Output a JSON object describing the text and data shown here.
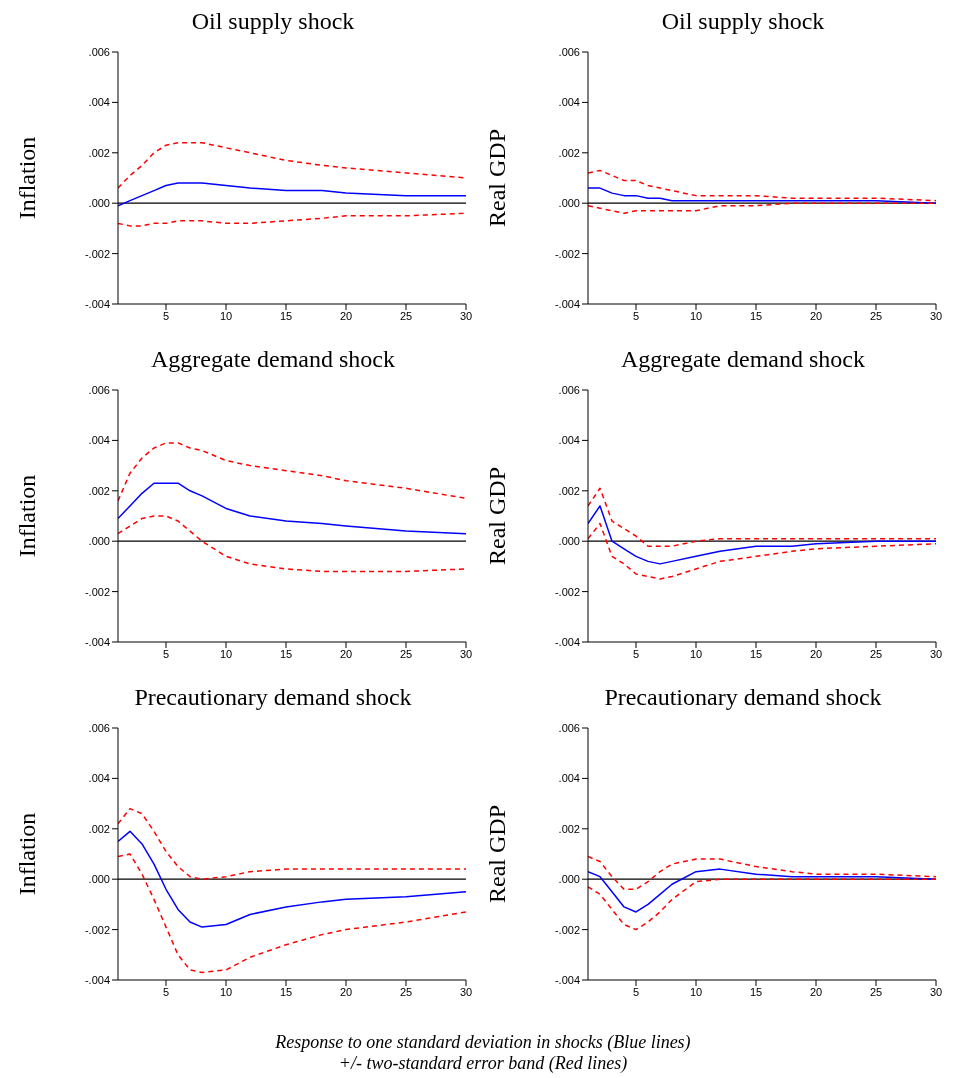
{
  "chart_data": [
    {
      "type": "line",
      "title": "Oil supply shock",
      "ylabel": "Inflation",
      "x": [
        1,
        2,
        3,
        4,
        5,
        6,
        7,
        8,
        10,
        12,
        15,
        18,
        20,
        25,
        30
      ],
      "xlim": [
        1,
        30
      ],
      "xticks": [
        5,
        10,
        15,
        20,
        25,
        30
      ],
      "ylim": [
        -0.004,
        0.006
      ],
      "yticks": [
        {
          "value": -0.004,
          "label": "-.004"
        },
        {
          "value": -0.002,
          "label": "-.002"
        },
        {
          "value": 0,
          "label": ".000"
        },
        {
          "value": 0.002,
          "label": ".002"
        },
        {
          "value": 0.004,
          "label": ".004"
        },
        {
          "value": 0.006,
          "label": ".006"
        }
      ],
      "ref_lines": [
        {
          "axis": "y",
          "value": 0,
          "color": "#000000"
        }
      ],
      "series": [
        {
          "color": "#0000ff",
          "line_style": "solid",
          "values": [
            -0.0001,
            0.0001,
            0.0003,
            0.0005,
            0.0007,
            0.0008,
            0.0008,
            0.0008,
            0.0007,
            0.0006,
            0.0005,
            0.0005,
            0.0004,
            0.0003,
            0.0003
          ]
        },
        {
          "color": "#ff0000",
          "line_style": "dashed",
          "values": [
            0.0006,
            0.0011,
            0.0015,
            0.002,
            0.0023,
            0.0024,
            0.0024,
            0.0024,
            0.0022,
            0.002,
            0.0017,
            0.0015,
            0.0014,
            0.0012,
            0.001
          ]
        },
        {
          "color": "#ff0000",
          "line_style": "dashed",
          "values": [
            -0.0008,
            -0.0009,
            -0.0009,
            -0.0008,
            -0.0008,
            -0.0007,
            -0.0007,
            -0.0007,
            -0.0008,
            -0.0008,
            -0.0007,
            -0.0006,
            -0.0005,
            -0.0005,
            -0.0004
          ]
        }
      ]
    },
    {
      "type": "line",
      "title": "Oil supply shock",
      "ylabel": "Real GDP",
      "x": [
        1,
        2,
        3,
        4,
        5,
        6,
        7,
        8,
        10,
        12,
        15,
        18,
        20,
        25,
        30
      ],
      "xlim": [
        1,
        30
      ],
      "xticks": [
        5,
        10,
        15,
        20,
        25,
        30
      ],
      "ylim": [
        -0.004,
        0.006
      ],
      "yticks": [
        {
          "value": -0.004,
          "label": "-.004"
        },
        {
          "value": -0.002,
          "label": "-.002"
        },
        {
          "value": 0,
          "label": ".000"
        },
        {
          "value": 0.002,
          "label": ".002"
        },
        {
          "value": 0.004,
          "label": ".004"
        },
        {
          "value": 0.006,
          "label": ".006"
        }
      ],
      "ref_lines": [
        {
          "axis": "y",
          "value": 0,
          "color": "#000000"
        }
      ],
      "series": [
        {
          "color": "#0000ff",
          "line_style": "solid",
          "values": [
            0.0006,
            0.0006,
            0.0004,
            0.0003,
            0.0003,
            0.0002,
            0.0002,
            0.0001,
            0.0001,
            0.0001,
            0.0001,
            0.0001,
            0.0001,
            0.0001,
            0
          ]
        },
        {
          "color": "#ff0000",
          "line_style": "dashed",
          "values": [
            0.0012,
            0.0013,
            0.0011,
            0.0009,
            0.0009,
            0.0007,
            0.0006,
            0.0005,
            0.0003,
            0.0003,
            0.0003,
            0.0002,
            0.0002,
            0.0002,
            0.0001
          ]
        },
        {
          "color": "#ff0000",
          "line_style": "dashed",
          "values": [
            -0.0001,
            -0.0002,
            -0.0003,
            -0.0004,
            -0.0003,
            -0.0003,
            -0.0003,
            -0.0003,
            -0.0003,
            -0.0001,
            -0.0001,
            0,
            0,
            0,
            0
          ]
        }
      ]
    },
    {
      "type": "line",
      "title": "Aggregate demand shock",
      "ylabel": "Inflation",
      "x": [
        1,
        2,
        3,
        4,
        5,
        6,
        7,
        8,
        10,
        12,
        15,
        18,
        20,
        25,
        30
      ],
      "xlim": [
        1,
        30
      ],
      "xticks": [
        5,
        10,
        15,
        20,
        25,
        30
      ],
      "ylim": [
        -0.004,
        0.006
      ],
      "yticks": [
        {
          "value": -0.004,
          "label": "-.004"
        },
        {
          "value": -0.002,
          "label": "-.002"
        },
        {
          "value": 0,
          "label": ".000"
        },
        {
          "value": 0.002,
          "label": ".002"
        },
        {
          "value": 0.004,
          "label": ".004"
        },
        {
          "value": 0.006,
          "label": ".006"
        }
      ],
      "ref_lines": [
        {
          "axis": "y",
          "value": 0,
          "color": "#000000"
        }
      ],
      "series": [
        {
          "color": "#0000ff",
          "line_style": "solid",
          "values": [
            0.0009,
            0.0014,
            0.0019,
            0.0023,
            0.0023,
            0.0023,
            0.002,
            0.0018,
            0.0013,
            0.001,
            0.0008,
            0.0007,
            0.0006,
            0.0004,
            0.0003
          ]
        },
        {
          "color": "#ff0000",
          "line_style": "dashed",
          "values": [
            0.0016,
            0.0027,
            0.0033,
            0.0037,
            0.0039,
            0.0039,
            0.0037,
            0.0036,
            0.0032,
            0.003,
            0.0028,
            0.0026,
            0.0024,
            0.0021,
            0.0017
          ]
        },
        {
          "color": "#ff0000",
          "line_style": "dashed",
          "values": [
            0.0003,
            0.0006,
            0.0009,
            0.001,
            0.001,
            0.0008,
            0.0004,
            0,
            -0.0006,
            -0.0009,
            -0.0011,
            -0.0012,
            -0.0012,
            -0.0012,
            -0.0011
          ]
        }
      ]
    },
    {
      "type": "line",
      "title": "Aggregate demand shock",
      "ylabel": "Real GDP",
      "x": [
        1,
        2,
        3,
        4,
        5,
        6,
        7,
        8,
        10,
        12,
        15,
        18,
        20,
        25,
        30
      ],
      "xlim": [
        1,
        30
      ],
      "xticks": [
        5,
        10,
        15,
        20,
        25,
        30
      ],
      "ylim": [
        -0.004,
        0.006
      ],
      "yticks": [
        {
          "value": -0.004,
          "label": "-.004"
        },
        {
          "value": -0.002,
          "label": "-.002"
        },
        {
          "value": 0,
          "label": ".000"
        },
        {
          "value": 0.002,
          "label": ".002"
        },
        {
          "value": 0.004,
          "label": ".004"
        },
        {
          "value": 0.006,
          "label": ".006"
        }
      ],
      "ref_lines": [
        {
          "axis": "y",
          "value": 0,
          "color": "#000000"
        }
      ],
      "series": [
        {
          "color": "#0000ff",
          "line_style": "solid",
          "values": [
            0.0007,
            0.0014,
            0,
            -0.0003,
            -0.0006,
            -0.0008,
            -0.0009,
            -0.0008,
            -0.0006,
            -0.0004,
            -0.0002,
            -0.0002,
            -0.0001,
            0,
            0
          ]
        },
        {
          "color": "#ff0000",
          "line_style": "dashed",
          "values": [
            0.0014,
            0.0021,
            0.0008,
            0.0005,
            0.0002,
            -0.0002,
            -0.0002,
            -0.0002,
            0,
            0.0001,
            0.0001,
            0.0001,
            0.0001,
            0.0001,
            0.0001
          ]
        },
        {
          "color": "#ff0000",
          "line_style": "dashed",
          "values": [
            0.0001,
            0.0007,
            -0.0006,
            -0.0009,
            -0.0013,
            -0.0014,
            -0.0015,
            -0.0014,
            -0.0011,
            -0.0008,
            -0.0006,
            -0.0004,
            -0.0003,
            -0.0002,
            -0.0001
          ]
        }
      ]
    },
    {
      "type": "line",
      "title": "Precautionary demand shock",
      "ylabel": "Inflation",
      "x": [
        1,
        2,
        3,
        4,
        5,
        6,
        7,
        8,
        10,
        12,
        15,
        18,
        20,
        25,
        30
      ],
      "xlim": [
        1,
        30
      ],
      "xticks": [
        5,
        10,
        15,
        20,
        25,
        30
      ],
      "ylim": [
        -0.004,
        0.006
      ],
      "yticks": [
        {
          "value": -0.004,
          "label": "-.004"
        },
        {
          "value": -0.002,
          "label": "-.002"
        },
        {
          "value": 0,
          "label": ".000"
        },
        {
          "value": 0.002,
          "label": ".002"
        },
        {
          "value": 0.004,
          "label": ".004"
        },
        {
          "value": 0.006,
          "label": ".006"
        }
      ],
      "ref_lines": [
        {
          "axis": "y",
          "value": 0,
          "color": "#000000"
        }
      ],
      "series": [
        {
          "color": "#0000ff",
          "line_style": "solid",
          "values": [
            0.0015,
            0.0019,
            0.0014,
            0.0006,
            -0.0004,
            -0.0012,
            -0.0017,
            -0.0019,
            -0.0018,
            -0.0014,
            -0.0011,
            -0.0009,
            -0.0008,
            -0.0007,
            -0.0005
          ]
        },
        {
          "color": "#ff0000",
          "line_style": "dashed",
          "values": [
            0.0022,
            0.0028,
            0.0026,
            0.0019,
            0.0011,
            0.0005,
            0.0001,
            0,
            0.0001,
            0.0003,
            0.0004,
            0.0004,
            0.0004,
            0.0004,
            0.0004
          ]
        },
        {
          "color": "#ff0000",
          "line_style": "dashed",
          "values": [
            0.0009,
            0.001,
            0.0002,
            -0.0008,
            -0.0019,
            -0.003,
            -0.0036,
            -0.0037,
            -0.0036,
            -0.0031,
            -0.0026,
            -0.0022,
            -0.002,
            -0.0017,
            -0.0013
          ]
        }
      ]
    },
    {
      "type": "line",
      "title": "Precautionary demand shock",
      "ylabel": "Real GDP",
      "x": [
        1,
        2,
        3,
        4,
        5,
        6,
        7,
        8,
        10,
        12,
        15,
        18,
        20,
        25,
        30
      ],
      "xlim": [
        1,
        30
      ],
      "xticks": [
        5,
        10,
        15,
        20,
        25,
        30
      ],
      "ylim": [
        -0.004,
        0.006
      ],
      "yticks": [
        {
          "value": -0.004,
          "label": "-.004"
        },
        {
          "value": -0.002,
          "label": "-.002"
        },
        {
          "value": 0,
          "label": ".000"
        },
        {
          "value": 0.002,
          "label": ".002"
        },
        {
          "value": 0.004,
          "label": ".004"
        },
        {
          "value": 0.006,
          "label": ".006"
        }
      ],
      "ref_lines": [
        {
          "axis": "y",
          "value": 0,
          "color": "#000000"
        }
      ],
      "annotations": [
        "Response to one standard deviation in shocks (Blue lines)",
        "+/- two-standard error band (Red lines)"
      ],
      "series": [
        {
          "color": "#0000ff",
          "line_style": "solid",
          "values": [
            0.0003,
            0.0001,
            -0.0005,
            -0.0011,
            -0.0013,
            -0.001,
            -0.0006,
            -0.0002,
            0.0003,
            0.0004,
            0.0002,
            0.0001,
            0.0001,
            0.0001,
            0
          ]
        },
        {
          "color": "#ff0000",
          "line_style": "dashed",
          "values": [
            0.0009,
            0.0007,
            0.0001,
            -0.0004,
            -0.0004,
            -0.0001,
            0.0003,
            0.0006,
            0.0008,
            0.0008,
            0.0005,
            0.0003,
            0.0002,
            0.0002,
            0.0001
          ]
        },
        {
          "color": "#ff0000",
          "line_style": "dashed",
          "values": [
            -0.0003,
            -0.0006,
            -0.0012,
            -0.0018,
            -0.002,
            -0.0017,
            -0.0013,
            -0.0008,
            -0.0001,
            0,
            0,
            0,
            0,
            0,
            0
          ]
        }
      ]
    }
  ]
}
